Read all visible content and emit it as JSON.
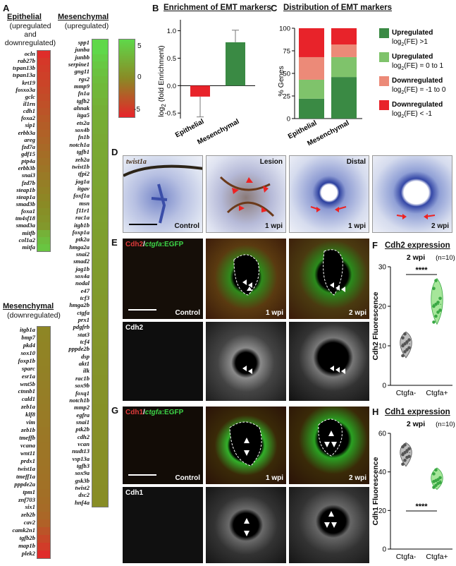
{
  "panel_letters": {
    "A": "A",
    "B": "B",
    "C": "C",
    "D": "D",
    "E": "E",
    "F": "F",
    "G": "G",
    "H": "H"
  },
  "panelA": {
    "epi_header": "Epithelial",
    "epi_sub": [
      "(upregulated",
      "and",
      "downregulated)"
    ],
    "mes_up_header": "Mesenchymal",
    "mes_up_sub": "(upregulated)",
    "mes_down_header": "Mesenchymal",
    "mes_down_sub": "(downregulated)",
    "scale_ticks": [
      "5",
      "0",
      "-5"
    ],
    "colors": {
      "red": "#e8232a",
      "green": "#5fd84a",
      "mid": "#8a8a25"
    },
    "epithelial": {
      "genes": [
        "ocln",
        "rab27b",
        "tspan13b",
        "tspan13a",
        "krt19",
        "fosxo3a",
        "gclc",
        "il1rn",
        "cdh1",
        "foxa2",
        "sip1",
        "erbb3a",
        "areg",
        "fzd7a",
        "gdf15",
        "ptp4a",
        "erbb3b",
        "snai3",
        "fzd7b",
        "steap1b",
        "steap1a",
        "smad3b",
        "foxa1",
        "tm4sf18",
        "smad3a",
        "mitfb",
        "col1a2",
        "mitfa"
      ],
      "values": [
        -4.5,
        -4.0,
        -3.8,
        -3.6,
        -3.4,
        -3.2,
        -3.0,
        -2.8,
        -2.6,
        -2.4,
        -2.2,
        -2.0,
        -1.8,
        -1.6,
        -1.4,
        -1.2,
        -1.0,
        -0.8,
        -0.6,
        -0.4,
        -0.2,
        0.0,
        0.3,
        0.6,
        0.9,
        2.5,
        3.2,
        3.8
      ]
    },
    "mes_up": {
      "genes": [
        "spp1",
        "junba",
        "junbb",
        "serpine1",
        "gng11",
        "rgs2",
        "mmp9",
        "fn1a",
        "tgfb2",
        "ahnak",
        "itga5",
        "ets2a",
        "sox4b",
        "fn1b",
        "notch1a",
        "tgfb1",
        "zeb2a",
        "twist1b",
        "tfpi2",
        "jag1a",
        "itgav",
        "foxf1a",
        "msn",
        "f11r1",
        "rac1a",
        "itgb1b",
        "foxp1a",
        "ptk2a",
        "hmga2a",
        "snai2",
        "smad2",
        "jag1b",
        "sox4a",
        "nodal",
        "e47",
        "tcf3",
        "hmga2b",
        "ctgfa",
        "prx1",
        "pdgfrb",
        "stat3",
        "tcf4",
        "pppde2b",
        "dsp",
        "akt1",
        "ilk",
        "rac1b",
        "sox9b",
        "foxq1",
        "notch1b",
        "mmp2",
        "egfra",
        "snai1",
        "ptk2b",
        "cdh2",
        "vcan",
        "nudt13",
        "vsp13a",
        "tgfb3",
        "sox9a",
        "gsk3b",
        "twist2",
        "dsc2",
        "hnf4a"
      ],
      "values": [
        6.0,
        5.0,
        4.4,
        4.0,
        3.6,
        3.3,
        3.0,
        2.8,
        2.6,
        2.4,
        2.3,
        2.2,
        2.1,
        2.0,
        1.95,
        1.9,
        1.85,
        1.8,
        1.75,
        1.7,
        1.65,
        1.6,
        1.55,
        1.5,
        1.45,
        1.4,
        1.35,
        1.3,
        1.26,
        1.22,
        1.18,
        1.14,
        1.1,
        1.06,
        1.02,
        0.98,
        0.94,
        0.9,
        0.86,
        0.82,
        0.78,
        0.74,
        0.7,
        0.67,
        0.64,
        0.61,
        0.58,
        0.55,
        0.52,
        0.49,
        0.46,
        0.43,
        0.4,
        0.38,
        0.36,
        0.34,
        0.32,
        0.3,
        0.28,
        0.26,
        0.24,
        0.22,
        0.2,
        0.18
      ]
    },
    "mes_down": {
      "genes": [
        "itgb1a",
        "bmp7",
        "pkd4",
        "sox10",
        "foxp1b",
        "sparc",
        "esr1a",
        "wnt5b",
        "ctnnb1",
        "cald1",
        "zeb1a",
        "klf8",
        "vim",
        "zeb1b",
        "tmeffb",
        "vcana",
        "wnt11",
        "prdx1",
        "twist1a",
        "tmeff1a",
        "pppde2a",
        "tpm1",
        "znf703",
        "six1",
        "zeb2b",
        "cav2",
        "camk2n1",
        "tgfb2b",
        "map1b",
        "plek2"
      ],
      "values": [
        -0.2,
        -0.25,
        -0.3,
        -0.35,
        -0.4,
        -0.45,
        -0.5,
        -0.55,
        -0.6,
        -0.65,
        -0.7,
        -0.75,
        -0.8,
        -0.85,
        -0.9,
        -0.95,
        -1.0,
        -1.05,
        -1.1,
        -1.15,
        -1.2,
        -1.3,
        -1.4,
        -1.5,
        -1.7,
        -2.0,
        -2.6,
        -3.2,
        -3.8,
        -4.6
      ]
    }
  },
  "chart_data": [
    {
      "type": "bar",
      "panel": "B",
      "title": "Enrichment of EMT markers",
      "ylabel": "log2 (fold Enrichment)",
      "categories": [
        "Epithelial",
        "Mesenchymal"
      ],
      "values": [
        -0.2,
        0.79
      ],
      "error": [
        0.37,
        0.22
      ],
      "colors": [
        "#e8232a",
        "#3a8a44"
      ],
      "ylim": [
        -0.6,
        1.2
      ],
      "yticks": [
        "-0.5",
        "0.0",
        "0.5",
        "1.0"
      ]
    },
    {
      "type": "bar",
      "panel": "C",
      "title": "Distribution of EMT markers",
      "ylabel": "% Genes",
      "categories": [
        "Epithelial",
        "Mesenchymal"
      ],
      "series": [
        {
          "name": "Upregulated log2(FE) >1",
          "values": [
            22,
            46
          ],
          "color": "#3a8a44"
        },
        {
          "name": "Upregulated log2(FE) = 0 to 1",
          "values": [
            21,
            22
          ],
          "color": "#7fc36b"
        },
        {
          "name": "Downregulated log2(FE) = -1 to 0",
          "values": [
            25,
            14
          ],
          "color": "#ec8a78"
        },
        {
          "name": "Downregulated log2(FE) < -1",
          "values": [
            32,
            18
          ],
          "color": "#e8232a"
        }
      ],
      "legend": [
        {
          "l1": "Upregulated",
          "l2": "log",
          "sub": "2",
          "l3": "(FE) >1"
        },
        {
          "l1": "Upregulated",
          "l2": "log",
          "sub": "2",
          "l3": "(FE) = 0 to 1"
        },
        {
          "l1": "Downregulated",
          "l2": "log",
          "sub": "2",
          "l3": "(FE) = -1 to 0"
        },
        {
          "l1": "Downregulated",
          "l2": "log",
          "sub": "2",
          "l3": "(FE) < -1"
        }
      ],
      "ylim": [
        0,
        100
      ],
      "yticks": [
        "0",
        "25",
        "50",
        "75",
        "100"
      ],
      "legend_position": "right"
    },
    {
      "type": "scatter",
      "panel": "F",
      "title": "Cdh2 expression",
      "subtitle": "2 wpi",
      "n_label": "(n=10)",
      "ylabel": "Cdh2 Fluorescence",
      "categories": [
        "Ctgfa-",
        "Ctgfa+"
      ],
      "significance": "****",
      "ylim": [
        0,
        30
      ],
      "yticks": [
        "0",
        "10",
        "20",
        "30"
      ],
      "groups": [
        {
          "name": "Ctgfa-",
          "color": "#555555",
          "violin": "#bdbdbd",
          "values": [
            7.5,
            8.5,
            9.0,
            9.5,
            10.0,
            10.5,
            11.0,
            11.5,
            12.0,
            13.0
          ]
        },
        {
          "name": "Ctgfa+",
          "color": "#3aa844",
          "violin": "#a6e69a",
          "values": [
            16.0,
            17.5,
            18.5,
            19.0,
            20.0,
            20.5,
            21.0,
            22.0,
            24.5,
            26.5
          ]
        }
      ]
    },
    {
      "type": "scatter",
      "panel": "H",
      "title": "Cdh1 expression",
      "subtitle": "2 wpi",
      "n_label": "(n=10)",
      "ylabel": "Cdh1 Fluorescence",
      "categories": [
        "Ctgfa-",
        "Ctgfa+"
      ],
      "significance": "****",
      "ylim": [
        0,
        60
      ],
      "yticks": [
        "0",
        "20",
        "40",
        "60"
      ],
      "groups": [
        {
          "name": "Ctgfa-",
          "color": "#555555",
          "violin": "#bdbdbd",
          "values": [
            44,
            46,
            47.5,
            48,
            49,
            50,
            51,
            52,
            53,
            54
          ]
        },
        {
          "name": "Ctgfa+",
          "color": "#3aa844",
          "violin": "#a6e69a",
          "values": [
            32,
            33,
            34,
            34.5,
            35,
            35.5,
            36,
            37,
            39,
            41
          ]
        }
      ]
    }
  ],
  "panelD": {
    "gene_label": "twist1a",
    "captions": [
      "Control",
      "1 wpi",
      "1 wpi",
      "2 wpi"
    ],
    "region_labels": [
      "Lesion",
      "Distal"
    ]
  },
  "panelE": {
    "marker_red": "Cdh2",
    "marker_green_gene": "ctgfa",
    "marker_green_tag": ":EGFP",
    "slash": "/",
    "captions": [
      "Control",
      "1 wpi",
      "2 wpi"
    ],
    "gray_label": "Cdh2"
  },
  "panelG": {
    "marker_red": "Cdh1",
    "marker_green_gene": "ctgfa",
    "marker_green_tag": ":EGFP",
    "slash": "/",
    "captions": [
      "Control",
      "1 wpi",
      "2 wpi"
    ],
    "gray_label": "Cdh1"
  }
}
